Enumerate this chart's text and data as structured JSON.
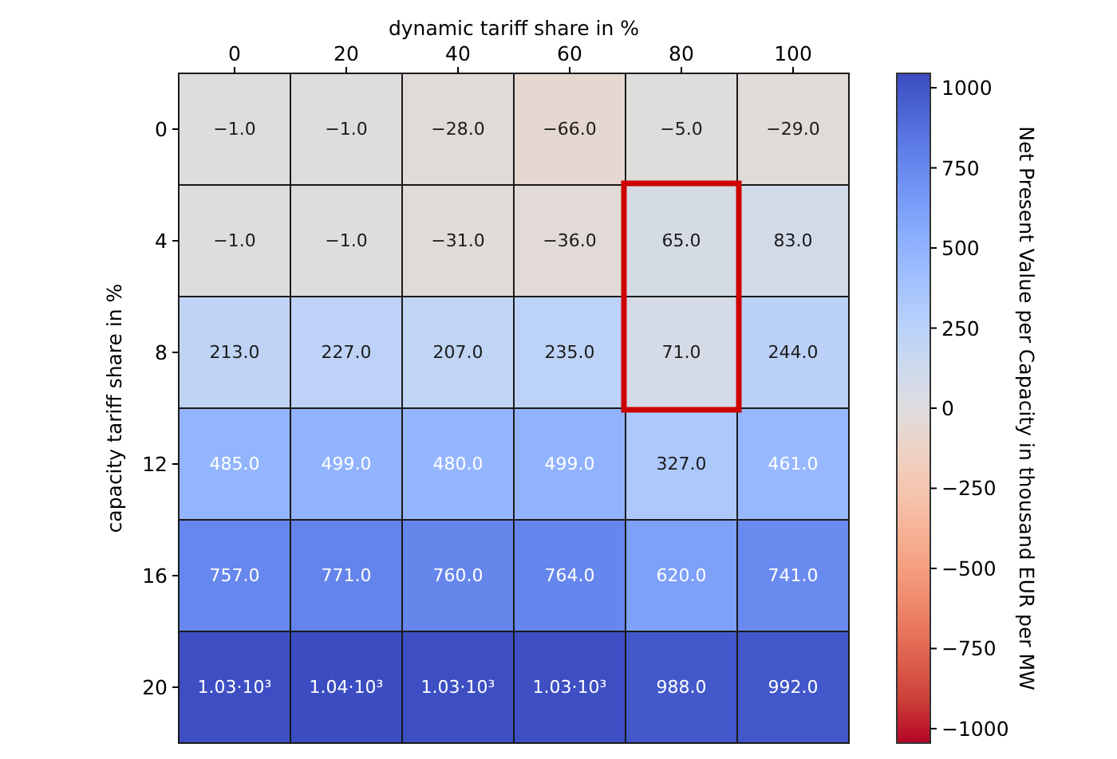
{
  "chart_data": {
    "type": "heatmap",
    "xlabel": "dynamic tariff share in %",
    "ylabel": "capacity tariff share in %",
    "clabel": "Net Present Value per Capacity in thousand EUR per MW",
    "categories": [
      "0",
      "20",
      "40",
      "60",
      "80",
      "100"
    ],
    "y_categories": [
      "0",
      "4",
      "8",
      "12",
      "16",
      "20"
    ],
    "cells": [
      [
        -1,
        -1,
        -28,
        -66,
        -5,
        -29
      ],
      [
        -1,
        -1,
        -31,
        -36,
        65,
        83
      ],
      [
        213,
        227,
        207,
        235,
        71,
        244
      ],
      [
        485,
        499,
        480,
        499,
        327,
        461
      ],
      [
        757,
        771,
        760,
        764,
        620,
        741
      ],
      [
        1030,
        1040,
        1030,
        1030,
        988,
        992
      ]
    ],
    "cell_labels": [
      [
        "−1.0",
        "−1.0",
        "−28.0",
        "−66.0",
        "−5.0",
        "−29.0"
      ],
      [
        "−1.0",
        "−1.0",
        "−31.0",
        "−36.0",
        "65.0",
        "83.0"
      ],
      [
        "213.0",
        "227.0",
        "207.0",
        "235.0",
        "71.0",
        "244.0"
      ],
      [
        "485.0",
        "499.0",
        "480.0",
        "499.0",
        "327.0",
        "461.0"
      ],
      [
        "757.0",
        "771.0",
        "760.0",
        "764.0",
        "620.0",
        "741.0"
      ],
      [
        "1.03·10³",
        "1.04·10³",
        "1.03·10³",
        "1.03·10³",
        "988.0",
        "992.0"
      ]
    ],
    "clim": [
      -1045,
      1045
    ],
    "cticks": [
      {
        "value": -1000,
        "label": "−1000"
      },
      {
        "value": -750,
        "label": "−750"
      },
      {
        "value": -500,
        "label": "−500"
      },
      {
        "value": -250,
        "label": "−250"
      },
      0,
      250,
      500,
      750,
      1000
    ]
  }
}
